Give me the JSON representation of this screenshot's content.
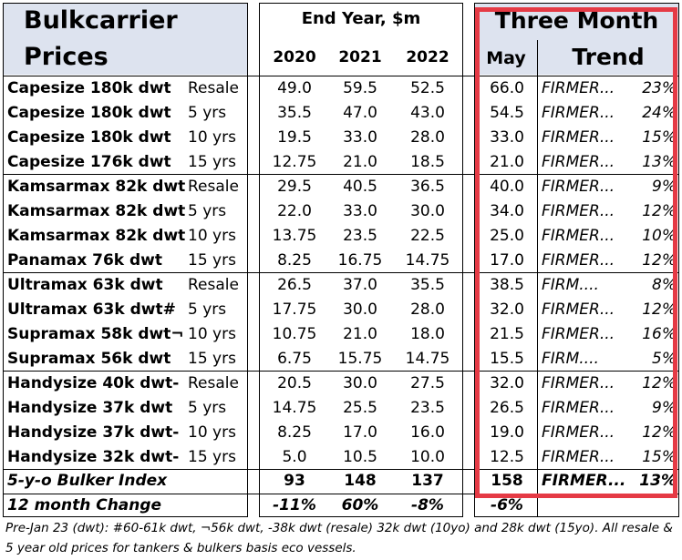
{
  "header": {
    "title_line1": "Bulkcarrier",
    "title_line2": "Prices",
    "end_year_label": "End Year, $m",
    "years": [
      "2020",
      "2021",
      "2022"
    ],
    "three_month_label": "Three Month",
    "may_label": "May",
    "trend_label": "Trend"
  },
  "rows": [
    {
      "name": "Capesize 180k dwt",
      "age": "Resale",
      "y2020": "49.0",
      "y2021": "59.5",
      "y2022": "52.5",
      "may": "66.0",
      "trend": "FIRMER...",
      "pct": "23%"
    },
    {
      "name": "Capesize 180k dwt",
      "age": "5 yrs",
      "y2020": "35.5",
      "y2021": "47.0",
      "y2022": "43.0",
      "may": "54.5",
      "trend": "FIRMER...",
      "pct": "24%"
    },
    {
      "name": "Capesize 180k dwt",
      "age": "10 yrs",
      "y2020": "19.5",
      "y2021": "33.0",
      "y2022": "28.0",
      "may": "33.0",
      "trend": "FIRMER...",
      "pct": "15%"
    },
    {
      "name": "Capesize 176k dwt",
      "age": "15 yrs",
      "y2020": "12.75",
      "y2021": "21.0",
      "y2022": "18.5",
      "may": "21.0",
      "trend": "FIRMER...",
      "pct": "13%"
    },
    {
      "name": "Kamsarmax 82k dwt",
      "age": "Resale",
      "y2020": "29.5",
      "y2021": "40.5",
      "y2022": "36.5",
      "may": "40.0",
      "trend": "FIRMER...",
      "pct": "9%"
    },
    {
      "name": "Kamsarmax 82k dwt",
      "age": "5 yrs",
      "y2020": "22.0",
      "y2021": "33.0",
      "y2022": "30.0",
      "may": "34.0",
      "trend": "FIRMER...",
      "pct": "12%"
    },
    {
      "name": "Kamsarmax 82k dwt",
      "age": "10 yrs",
      "y2020": "13.75",
      "y2021": "23.5",
      "y2022": "22.5",
      "may": "25.0",
      "trend": "FIRMER...",
      "pct": "10%"
    },
    {
      "name": "Panamax 76k dwt",
      "age": "15 yrs",
      "y2020": "8.25",
      "y2021": "16.75",
      "y2022": "14.75",
      "may": "17.0",
      "trend": "FIRMER...",
      "pct": "12%"
    },
    {
      "name": "Ultramax 63k dwt",
      "age": "Resale",
      "y2020": "26.5",
      "y2021": "37.0",
      "y2022": "35.5",
      "may": "38.5",
      "trend": "FIRM....",
      "pct": "8%"
    },
    {
      "name": "Ultramax 63k dwt#",
      "age": "5 yrs",
      "y2020": "17.75",
      "y2021": "30.0",
      "y2022": "28.0",
      "may": "32.0",
      "trend": "FIRMER...",
      "pct": "12%"
    },
    {
      "name": "Supramax 58k dwt¬",
      "age": "10 yrs",
      "y2020": "10.75",
      "y2021": "21.0",
      "y2022": "18.0",
      "may": "21.5",
      "trend": "FIRMER...",
      "pct": "16%"
    },
    {
      "name": "Supramax 56k dwt",
      "age": "15 yrs",
      "y2020": "6.75",
      "y2021": "15.75",
      "y2022": "14.75",
      "may": "15.5",
      "trend": "FIRM....",
      "pct": "5%"
    },
    {
      "name": "Handysize 40k dwt-",
      "age": "Resale",
      "y2020": "20.5",
      "y2021": "30.0",
      "y2022": "27.5",
      "may": "32.0",
      "trend": "FIRMER...",
      "pct": "12%"
    },
    {
      "name": "Handysize 37k dwt",
      "age": "5 yrs",
      "y2020": "14.75",
      "y2021": "25.5",
      "y2022": "23.5",
      "may": "26.5",
      "trend": "FIRMER...",
      "pct": "9%"
    },
    {
      "name": "Handysize 37k dwt-",
      "age": "10 yrs",
      "y2020": "8.25",
      "y2021": "17.0",
      "y2022": "16.0",
      "may": "19.0",
      "trend": "FIRMER...",
      "pct": "12%"
    },
    {
      "name": "Handysize 32k dwt-",
      "age": "15 yrs",
      "y2020": "5.0",
      "y2021": "10.5",
      "y2022": "10.0",
      "may": "12.5",
      "trend": "FIRMER...",
      "pct": "15%"
    }
  ],
  "index_row": {
    "name": "5-y-o Bulker Index",
    "y2020": "93",
    "y2021": "148",
    "y2022": "137",
    "may": "158",
    "trend": "FIRMER...",
    "pct": "13%"
  },
  "change_row": {
    "name": "12 month Change",
    "y2020": "-11%",
    "y2021": "60%",
    "y2022": "-8%",
    "may": "-6%"
  },
  "footnote": "Pre-Jan 23 (dwt): #60-61k dwt, ¬56k dwt, -38k dwt (resale) 32k dwt (10yo) and 28k dwt (15yo). All resale & 5 year old prices for tankers & bulkers basis eco vessels.",
  "colors": {
    "header_bg": "#dde3ef",
    "highlight_border": "#e53a45"
  }
}
